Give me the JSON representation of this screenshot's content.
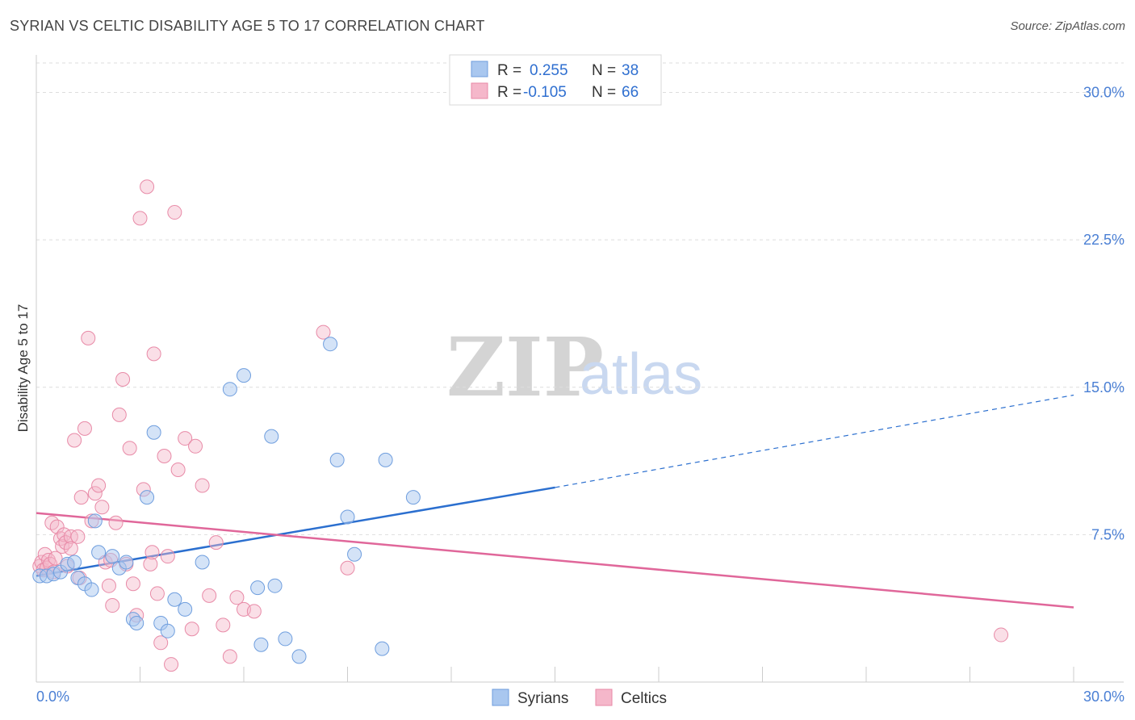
{
  "header": {
    "title": "SYRIAN VS CELTIC DISABILITY AGE 5 TO 17 CORRELATION CHART",
    "source": "Source: ZipAtlas.com"
  },
  "colors": {
    "syrians_fill": "#a9c7ef",
    "syrians_stroke": "#6f9ede",
    "syrians_line": "#2b6fcf",
    "celtics_fill": "#f5b7ca",
    "celtics_stroke": "#e88aa7",
    "celtics_line": "#e0679a",
    "grid": "#dddddd"
  },
  "watermark": {
    "zip": "ZIP",
    "atlas": "atlas"
  },
  "legend": {
    "r_label": "R =",
    "n_label": "N =",
    "syrians_r": "0.255",
    "syrians_n": "38",
    "celtics_r": "-0.105",
    "celtics_n": "66"
  },
  "chart_data": {
    "type": "scatter",
    "title": "SYRIAN VS CELTIC DISABILITY AGE 5 TO 17 CORRELATION CHART",
    "xlabel": "",
    "ylabel": "Disability Age 5 to 17",
    "xlim": [
      0,
      30
    ],
    "ylim": [
      0,
      31.5
    ],
    "x_tick_labels": [
      "0.0%",
      "30.0%"
    ],
    "y_tick_labels": [
      "7.5%",
      "15.0%",
      "22.5%",
      "30.0%"
    ],
    "y_tick_values": [
      7.5,
      15.0,
      22.5,
      30.0
    ],
    "series": [
      {
        "name": "Syrians",
        "r": 0.255,
        "n": 38,
        "trend": {
          "x": [
            0,
            15
          ],
          "y": [
            5.4,
            9.9
          ],
          "dashed_x": [
            15,
            30
          ],
          "dashed_y": [
            9.9,
            14.6
          ]
        },
        "points": [
          [
            0.1,
            5.4
          ],
          [
            0.3,
            5.4
          ],
          [
            0.5,
            5.5
          ],
          [
            0.7,
            5.6
          ],
          [
            0.9,
            6.0
          ],
          [
            1.1,
            6.1
          ],
          [
            1.2,
            5.3
          ],
          [
            1.4,
            5.0
          ],
          [
            1.6,
            4.7
          ],
          [
            1.7,
            8.2
          ],
          [
            1.8,
            6.6
          ],
          [
            2.2,
            6.4
          ],
          [
            2.4,
            5.8
          ],
          [
            2.6,
            6.1
          ],
          [
            2.8,
            3.2
          ],
          [
            2.9,
            3.0
          ],
          [
            3.2,
            9.4
          ],
          [
            3.4,
            12.7
          ],
          [
            3.6,
            3.0
          ],
          [
            3.8,
            2.6
          ],
          [
            4.0,
            4.2
          ],
          [
            4.3,
            3.7
          ],
          [
            4.8,
            6.1
          ],
          [
            5.6,
            14.9
          ],
          [
            6.0,
            15.6
          ],
          [
            6.4,
            4.8
          ],
          [
            6.5,
            1.9
          ],
          [
            6.8,
            12.5
          ],
          [
            6.9,
            4.9
          ],
          [
            7.2,
            2.2
          ],
          [
            7.6,
            1.3
          ],
          [
            8.5,
            17.2
          ],
          [
            8.7,
            11.3
          ],
          [
            9.0,
            8.4
          ],
          [
            9.2,
            6.5
          ],
          [
            10.0,
            1.7
          ],
          [
            10.1,
            11.3
          ],
          [
            10.9,
            9.4
          ]
        ]
      },
      {
        "name": "Celtics",
        "r": -0.105,
        "n": 66,
        "trend": {
          "x": [
            0,
            30
          ],
          "y": [
            8.6,
            3.8
          ]
        },
        "points": [
          [
            0.1,
            5.9
          ],
          [
            0.15,
            6.1
          ],
          [
            0.2,
            5.7
          ],
          [
            0.25,
            6.5
          ],
          [
            0.3,
            5.8
          ],
          [
            0.35,
            6.2
          ],
          [
            0.4,
            6.0
          ],
          [
            0.45,
            8.1
          ],
          [
            0.5,
            5.6
          ],
          [
            0.6,
            7.9
          ],
          [
            0.7,
            7.3
          ],
          [
            0.75,
            6.9
          ],
          [
            0.8,
            7.5
          ],
          [
            0.85,
            7.1
          ],
          [
            0.9,
            5.9
          ],
          [
            1.0,
            7.4
          ],
          [
            1.1,
            12.3
          ],
          [
            1.2,
            7.4
          ],
          [
            1.3,
            9.4
          ],
          [
            1.4,
            12.9
          ],
          [
            1.5,
            17.5
          ],
          [
            1.6,
            8.2
          ],
          [
            1.7,
            9.6
          ],
          [
            1.8,
            10.0
          ],
          [
            1.9,
            8.9
          ],
          [
            2.0,
            6.1
          ],
          [
            2.1,
            4.9
          ],
          [
            2.2,
            3.9
          ],
          [
            2.3,
            8.1
          ],
          [
            2.4,
            13.6
          ],
          [
            2.5,
            15.4
          ],
          [
            2.6,
            6.0
          ],
          [
            2.7,
            11.9
          ],
          [
            2.8,
            5.0
          ],
          [
            2.9,
            3.4
          ],
          [
            3.0,
            23.6
          ],
          [
            3.1,
            9.8
          ],
          [
            3.2,
            25.2
          ],
          [
            3.3,
            6.0
          ],
          [
            3.4,
            16.7
          ],
          [
            3.5,
            4.5
          ],
          [
            3.6,
            2.0
          ],
          [
            3.7,
            11.5
          ],
          [
            3.8,
            6.4
          ],
          [
            3.9,
            0.9
          ],
          [
            4.0,
            23.9
          ],
          [
            4.1,
            10.8
          ],
          [
            4.3,
            12.4
          ],
          [
            4.5,
            2.7
          ],
          [
            4.6,
            12.0
          ],
          [
            4.8,
            10.0
          ],
          [
            5.0,
            4.4
          ],
          [
            5.2,
            7.1
          ],
          [
            5.4,
            2.9
          ],
          [
            5.6,
            1.3
          ],
          [
            5.8,
            4.3
          ],
          [
            6.0,
            3.7
          ],
          [
            6.3,
            3.6
          ],
          [
            8.3,
            17.8
          ],
          [
            9.0,
            5.8
          ],
          [
            1.0,
            6.8
          ],
          [
            0.55,
            6.3
          ],
          [
            1.25,
            5.3
          ],
          [
            2.15,
            6.2
          ],
          [
            3.35,
            6.6
          ],
          [
            27.9,
            2.4
          ]
        ]
      }
    ]
  },
  "bottom_legend": {
    "syrians": "Syrians",
    "celtics": "Celtics"
  }
}
